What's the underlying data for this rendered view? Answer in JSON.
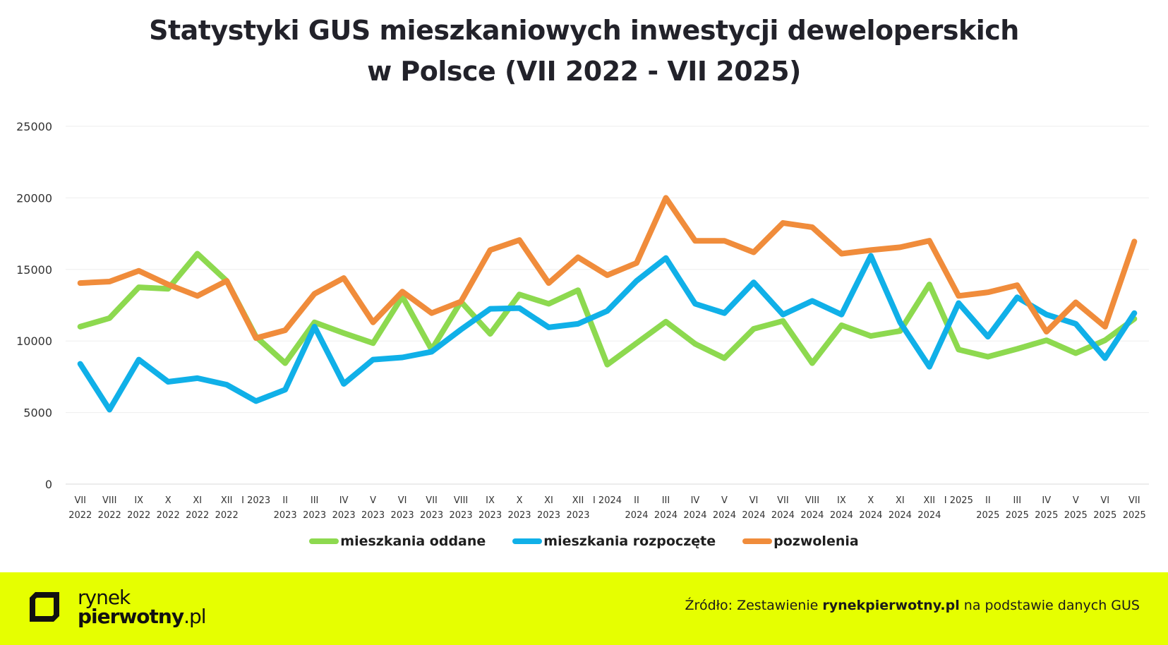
{
  "title_line1": "Statystyki GUS mieszkaniowych inwestycji deweloperskich",
  "title_line2": "w Polsce (VII 2022 - VII 2025)",
  "chart_data": {
    "type": "line",
    "categories": [
      [
        "VII",
        "2022"
      ],
      [
        "VIII",
        "2022"
      ],
      [
        "IX",
        "2022"
      ],
      [
        "X",
        "2022"
      ],
      [
        "XI",
        "2022"
      ],
      [
        "XII",
        "2022"
      ],
      [
        "I 2023",
        ""
      ],
      [
        "II",
        "2023"
      ],
      [
        "III",
        "2023"
      ],
      [
        "IV",
        "2023"
      ],
      [
        "V",
        "2023"
      ],
      [
        "VI",
        "2023"
      ],
      [
        "VII",
        "2023"
      ],
      [
        "VIII",
        "2023"
      ],
      [
        "IX",
        "2023"
      ],
      [
        "X",
        "2023"
      ],
      [
        "XI",
        "2023"
      ],
      [
        "XII",
        "2023"
      ],
      [
        "I 2024",
        ""
      ],
      [
        "II",
        "2024"
      ],
      [
        "III",
        "2024"
      ],
      [
        "IV",
        "2024"
      ],
      [
        "V",
        "2024"
      ],
      [
        "VI",
        "2024"
      ],
      [
        "VII",
        "2024"
      ],
      [
        "VIII",
        "2024"
      ],
      [
        "IX",
        "2024"
      ],
      [
        "X",
        "2024"
      ],
      [
        "XI",
        "2024"
      ],
      [
        "XII",
        "2024"
      ],
      [
        "I 2025",
        ""
      ],
      [
        "II",
        "2025"
      ],
      [
        "III",
        "2025"
      ],
      [
        "IV",
        "2025"
      ],
      [
        "V",
        "2025"
      ],
      [
        "VI",
        "2025"
      ],
      [
        "VII",
        "2025"
      ]
    ],
    "ylim": [
      0,
      25000
    ],
    "yticks": [
      0,
      5000,
      10000,
      15000,
      20000,
      25000
    ],
    "grid": true,
    "legend_position": "bottom",
    "series": [
      {
        "name": "mieszkania oddane",
        "color": "#8dd94f",
        "values": [
          11000,
          11600,
          13750,
          13650,
          16100,
          14200,
          10300,
          8450,
          11300,
          10550,
          9850,
          13100,
          9400,
          12750,
          10500,
          13250,
          12600,
          13550,
          8350,
          9850,
          11350,
          9800,
          8800,
          10850,
          11400,
          8450,
          11100,
          10350,
          10700,
          13950,
          9400,
          8900,
          9450,
          10050,
          9150,
          10050,
          11550
        ]
      },
      {
        "name": "mieszkania rozpoczęte",
        "color": "#10b0e8",
        "values": [
          8400,
          5200,
          8700,
          7150,
          7400,
          6950,
          5800,
          6600,
          11000,
          7000,
          8700,
          8850,
          9250,
          10800,
          12250,
          12300,
          10950,
          11200,
          12100,
          14200,
          15800,
          12600,
          11950,
          14100,
          11850,
          12800,
          11850,
          15950,
          11300,
          8200,
          12650,
          10300,
          13050,
          11850,
          11200,
          8800,
          11950
        ]
      },
      {
        "name": "pozwolenia",
        "color": "#f08c3b",
        "values": [
          14050,
          14150,
          14900,
          13950,
          13150,
          14200,
          10200,
          10750,
          13300,
          14400,
          11300,
          13450,
          11950,
          12750,
          16350,
          17050,
          14050,
          15850,
          14600,
          15450,
          20000,
          17000,
          17000,
          16200,
          18250,
          17950,
          16100,
          16350,
          16550,
          17000,
          13150,
          13400,
          13900,
          10650,
          12700,
          11000,
          16950
        ]
      }
    ]
  },
  "footer": {
    "logo_line1": "rynek",
    "logo_line2_bold": "pierwotny",
    "logo_line2_suffix": ".pl",
    "source_prefix": "Źródło: Zestawienie ",
    "source_bold": "rynekpierwotny.pl",
    "source_suffix": " na podstawie danych GUS",
    "background": "#e6ff00"
  }
}
